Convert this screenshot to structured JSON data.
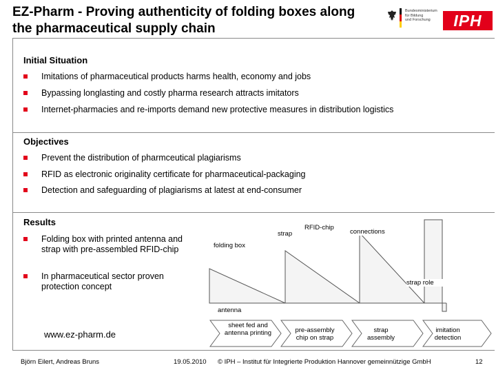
{
  "header": {
    "title_line1": "EZ-Pharm - Proving authenticity of folding boxes along",
    "title_line2": "the pharmaceutical supply chain",
    "logo_bmbf_lines": [
      "Bundesministerium",
      "für Bildung",
      "und Forschung"
    ],
    "logo_iph": "IPH",
    "accent_color": "#e2001a"
  },
  "initial": {
    "heading": "Initial Situation",
    "items": [
      "Imitations of pharmaceutical products harms health, economy and jobs",
      "Bypassing longlasting and costly pharma research attracts imitators",
      "Internet-pharmacies and re-imports demand new protective measures in distribution logistics"
    ]
  },
  "objectives": {
    "heading": "Objectives",
    "items": [
      "Prevent the distribution of pharmceutical plagiarisms",
      "RFID as electronic originality certificate for pharmaceutical-packaging",
      "Detection and safeguarding of plagiarisms at latest at end-consumer"
    ]
  },
  "results": {
    "heading": "Results",
    "items": [
      "Folding box with printed antenna and strap with pre-assembled RFID-chip",
      "In pharmaceutical sector proven protection concept"
    ]
  },
  "diagram": {
    "labels": {
      "strap": "strap",
      "rfid_chip": "RFID-chip",
      "connections": "connections",
      "folding_box": "folding box",
      "strap_role": "strap role",
      "antenna": "antenna"
    },
    "steps": [
      "sheet fed and antenna printing",
      "pre-assembly chip on strap",
      "strap assembly",
      "imitation detection"
    ]
  },
  "url": "www.ez-pharm.de",
  "footer": {
    "authors": "Björn Eilert, Andreas Bruns",
    "date": "19.05.2010",
    "institute": "© IPH – Institut für Integrierte Produktion Hannover gemeinnützige GmbH",
    "page": "12"
  }
}
